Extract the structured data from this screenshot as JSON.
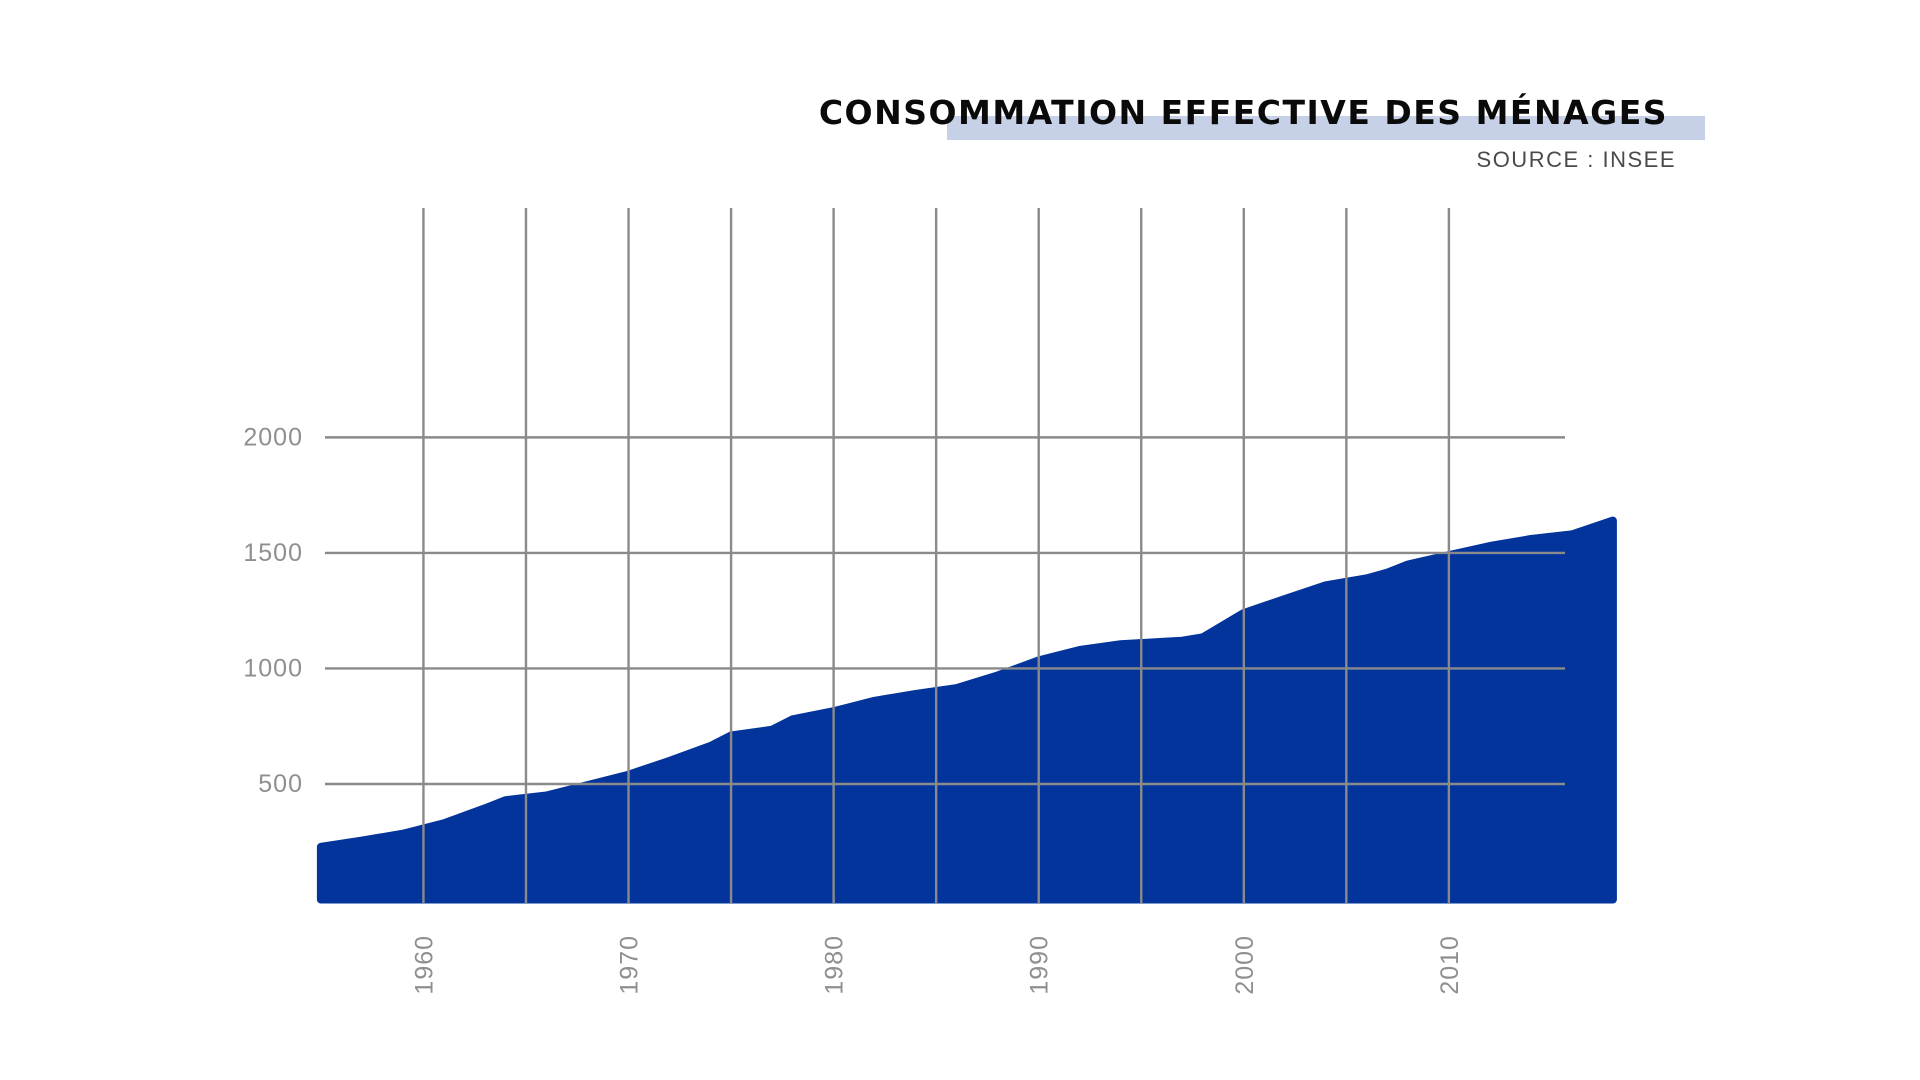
{
  "chart_data": {
    "type": "area",
    "title": "CONSOMMATION EFFECTIVE DES MÉNAGES",
    "subtitle": "SOURCE : INSEE",
    "xlabel": "",
    "ylabel": "",
    "xlim": [
      1955.2,
      2018.1
    ],
    "ylim": [
      -15,
      2430
    ],
    "x_ticks": [
      1960,
      1970,
      1980,
      1990,
      2000,
      2010
    ],
    "x_gridlines": [
      1960,
      1965,
      1970,
      1975,
      1980,
      1985,
      1990,
      1995,
      2000,
      2005,
      2010
    ],
    "y_ticks": [
      500,
      1000,
      1500,
      2000
    ],
    "grid": true,
    "legend": "none",
    "colors": {
      "area": "#02349c",
      "grid": "#8a8a8a",
      "title_highlight": "#c6d1e8"
    },
    "series": [
      {
        "x": [
          1955,
          1957,
          1959,
          1961,
          1963,
          1964,
          1966,
          1968,
          1970,
          1972,
          1974,
          1975,
          1977,
          1978,
          1980,
          1982,
          1984,
          1986,
          1988,
          1990,
          1992,
          1994,
          1996,
          1997,
          1998,
          2000,
          2002,
          2004,
          2006,
          2007,
          2008,
          2010,
          2012,
          2014,
          2016,
          2018
        ],
        "values": [
          228,
          255,
          285,
          330,
          395,
          430,
          450,
          495,
          540,
          600,
          665,
          710,
          735,
          780,
          815,
          860,
          890,
          915,
          970,
          1035,
          1080,
          1105,
          1115,
          1120,
          1135,
          1240,
          1300,
          1360,
          1390,
          1415,
          1450,
          1490,
          1530,
          1560,
          1580,
          1640
        ]
      }
    ]
  }
}
